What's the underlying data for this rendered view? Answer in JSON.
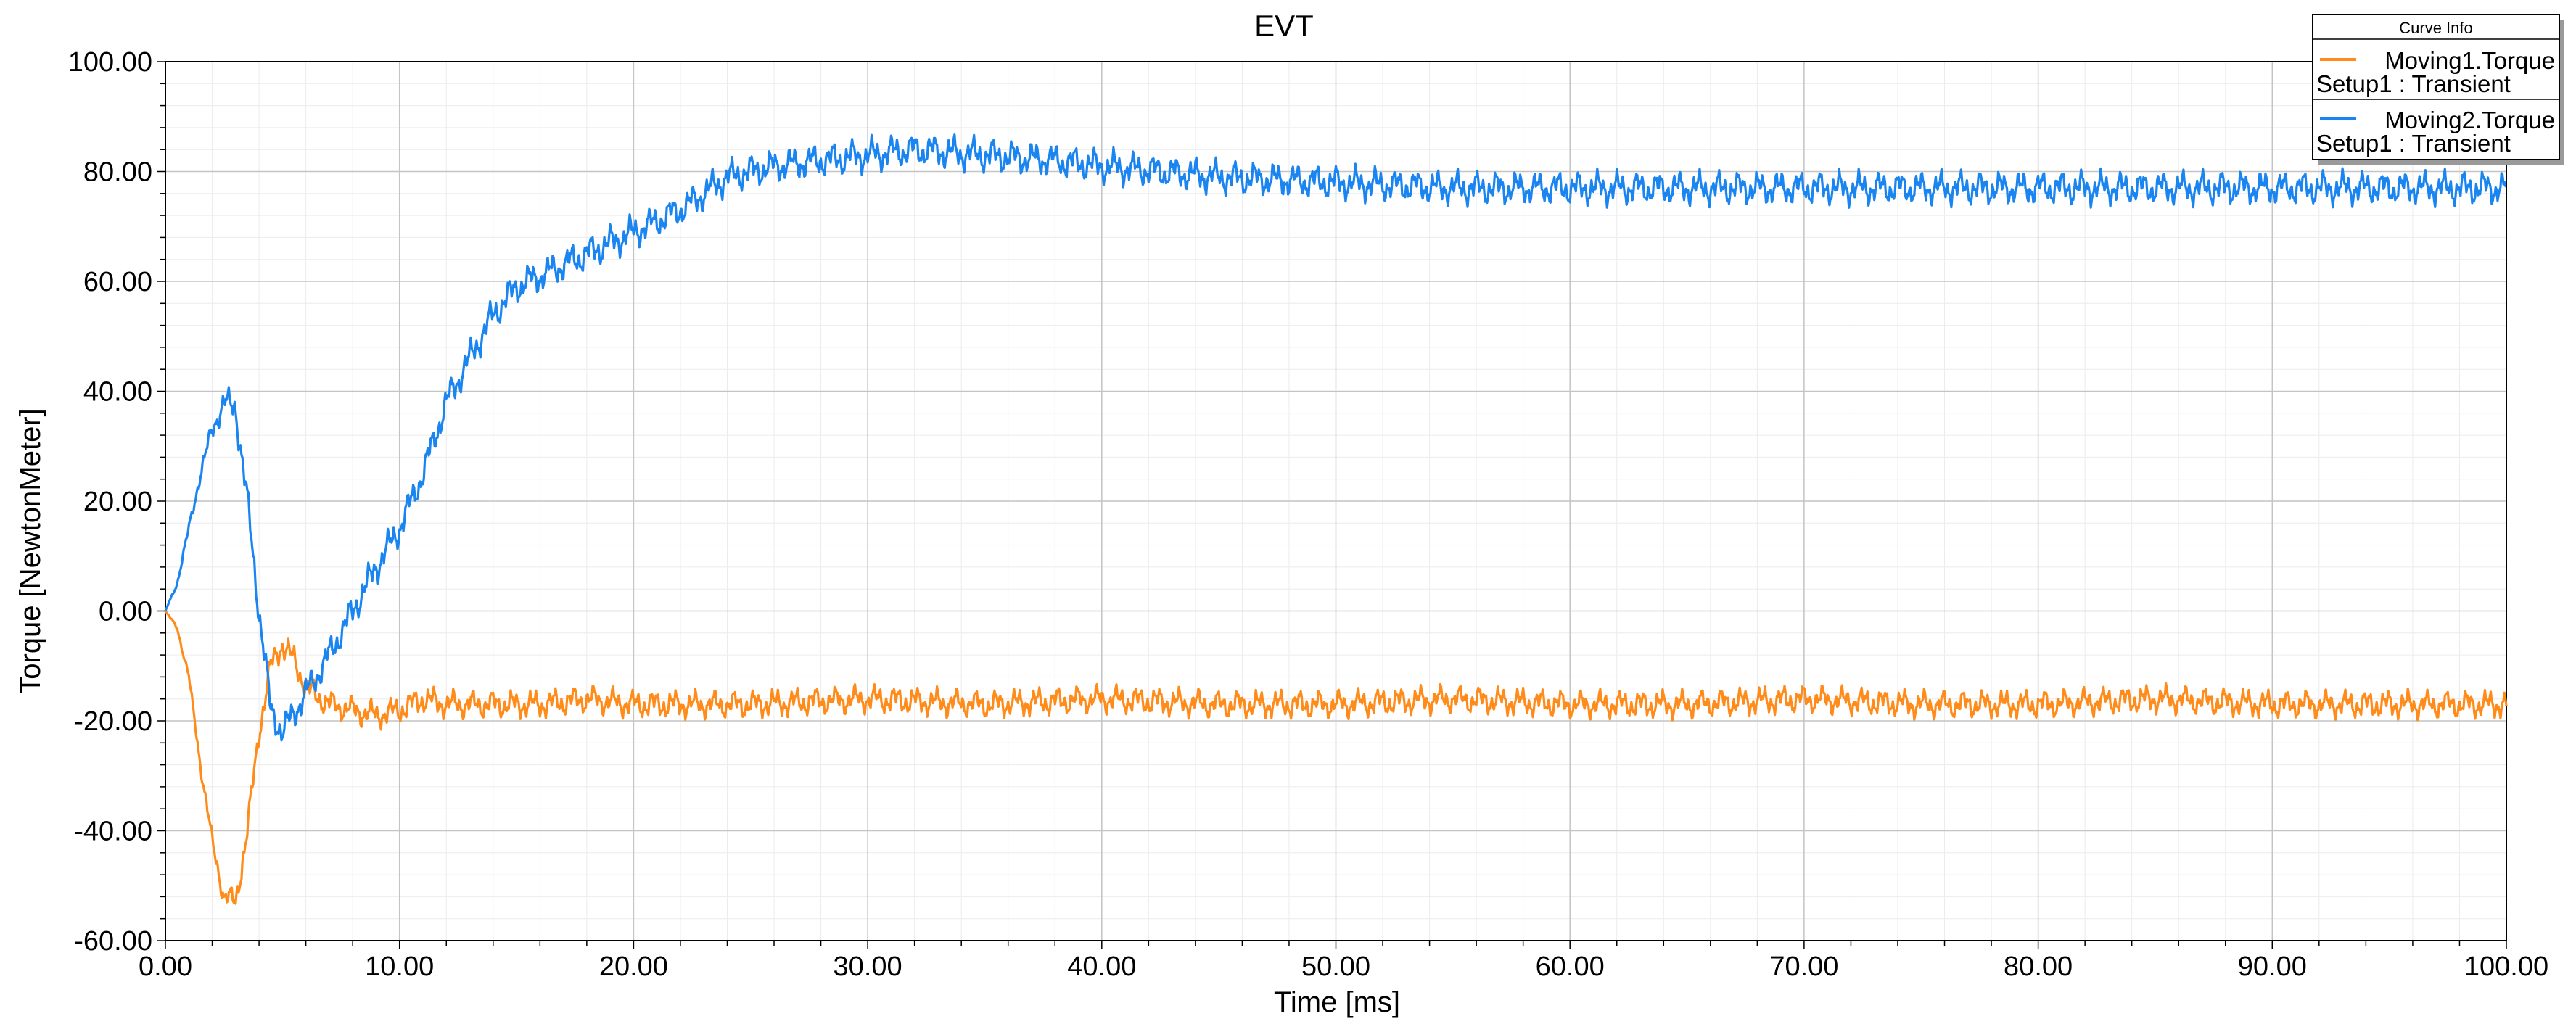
{
  "chart_data": {
    "type": "line",
    "title": "EVT",
    "xlabel": "Time [ms]",
    "ylabel": "Torque [NewtonMeter]",
    "xlim": [
      0,
      100
    ],
    "ylim": [
      -60,
      100
    ],
    "x_ticks": [
      "0.00",
      "10.00",
      "20.00",
      "30.00",
      "40.00",
      "50.00",
      "60.00",
      "70.00",
      "80.00",
      "90.00",
      "100.00"
    ],
    "y_ticks": [
      "100.00",
      "80.00",
      "60.00",
      "40.00",
      "20.00",
      "0.00",
      "-20.00",
      "-40.00",
      "-60.00"
    ],
    "grid": true,
    "legend": {
      "title": "Curve Info",
      "placement": "top-right",
      "entries": [
        {
          "name": "Moving1.Torque",
          "setup": "Setup1 : Transient"
        },
        {
          "name": "Moving2.Torque",
          "setup": "Setup1 : Transient"
        }
      ]
    },
    "series": [
      {
        "name": "Moving1.Torque",
        "color": "#ff8c1a",
        "x": [
          0,
          0.5,
          1,
          1.5,
          2,
          2.5,
          3,
          3.5,
          4,
          4.5,
          5,
          5.5,
          6,
          7,
          8,
          9,
          10,
          11,
          12,
          14,
          16,
          18,
          20,
          25,
          30,
          35,
          40,
          45,
          50,
          55,
          60,
          65,
          70,
          75,
          80,
          85,
          90,
          95,
          100
        ],
        "values": [
          0,
          -3,
          -12,
          -28,
          -42,
          -52,
          -53,
          -40,
          -22,
          -10,
          -6,
          -9,
          -14,
          -17,
          -18,
          -19,
          -18,
          -16,
          -17,
          -17,
          -17,
          -16,
          -17,
          -17,
          -16,
          -17,
          -16,
          -17,
          -17,
          -16,
          -17,
          -17,
          -16,
          -17,
          -17,
          -16,
          -17,
          -17,
          -17
        ]
      },
      {
        "name": "Moving2.Torque",
        "color": "#1a85f0",
        "x": [
          0,
          0.5,
          1,
          1.5,
          2,
          2.5,
          3,
          3.5,
          4,
          4.5,
          5,
          6,
          7,
          8,
          9,
          10,
          11,
          12,
          13,
          14,
          15,
          16,
          18,
          20,
          22,
          24,
          26,
          28,
          30,
          32,
          35,
          38,
          40,
          45,
          50,
          55,
          60,
          65,
          70,
          75,
          80,
          85,
          90,
          95,
          100
        ],
        "values": [
          0,
          5,
          15,
          25,
          33,
          38,
          37,
          20,
          0,
          -18,
          -22,
          -15,
          -8,
          0,
          8,
          15,
          25,
          38,
          46,
          54,
          59,
          61,
          65,
          69,
          73,
          79,
          81,
          82,
          83,
          84,
          83,
          82,
          81,
          79,
          78,
          77,
          77,
          77,
          77,
          77,
          77,
          77,
          77,
          77,
          77
        ]
      }
    ]
  }
}
